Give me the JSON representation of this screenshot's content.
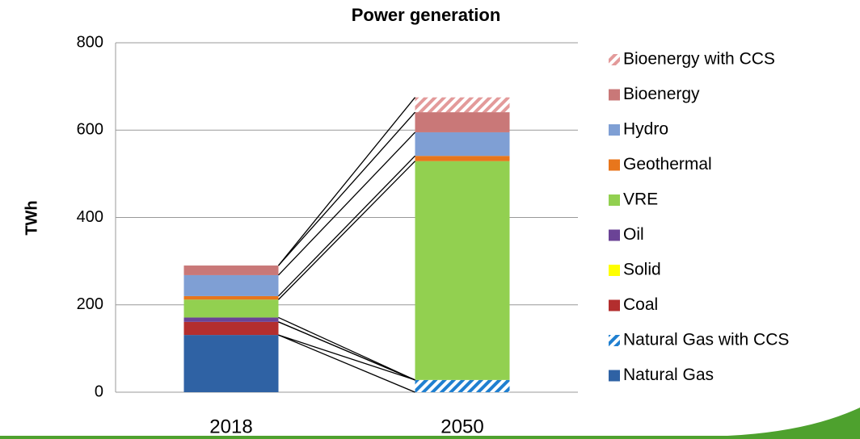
{
  "chart_data": {
    "type": "stacked_bar",
    "title": "Power generation",
    "y_label": "TWh",
    "categories": [
      "2018",
      "2050"
    ],
    "series": [
      {
        "name": "Natural Gas",
        "color": "#2f62a4",
        "values": [
          131,
          0
        ]
      },
      {
        "name": "Natural Gas with CCS",
        "color": "#1f7fd0",
        "hatch": true,
        "values": [
          0,
          28
        ]
      },
      {
        "name": "Coal",
        "color": "#b32e2e",
        "values": [
          30,
          0
        ]
      },
      {
        "name": "Solid",
        "color": "#ffff00",
        "values": [
          0,
          0
        ]
      },
      {
        "name": "Oil",
        "color": "#6b4396",
        "values": [
          10,
          0
        ]
      },
      {
        "name": "VRE",
        "color": "#92d050",
        "values": [
          41,
          501
        ]
      },
      {
        "name": "Geothermal",
        "color": "#e8761c",
        "values": [
          8,
          12
        ]
      },
      {
        "name": "Hydro",
        "color": "#7f9fd4",
        "values": [
          48,
          54
        ]
      },
      {
        "name": "Bioenergy",
        "color": "#c97878",
        "values": [
          22,
          46
        ]
      },
      {
        "name": "Bioenergy with CCS",
        "color": "#e39a9a",
        "hatch": true,
        "values": [
          0,
          34
        ]
      }
    ],
    "ylim": [
      0,
      800
    ],
    "yticks": [
      0,
      200,
      400,
      600,
      800
    ],
    "grid": true,
    "legend": "right",
    "connectors": true
  }
}
